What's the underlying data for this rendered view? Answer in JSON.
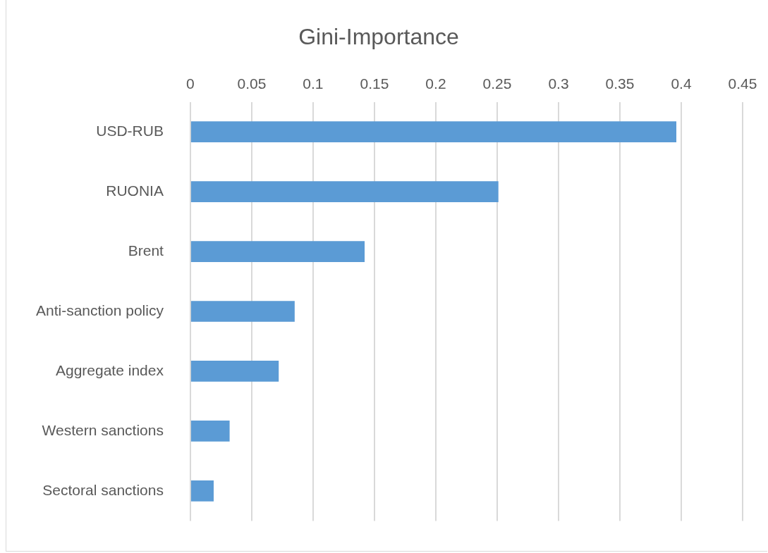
{
  "chart_data": {
    "type": "bar",
    "orientation": "horizontal",
    "title": "Gini-Importance",
    "categories": [
      "USD-RUB",
      "RUONIA",
      "Brent",
      "Anti-sanction policy",
      "Aggregate index",
      "Western sanctions",
      "Sectoral sanctions"
    ],
    "values": [
      0.396,
      0.251,
      0.142,
      0.085,
      0.072,
      0.032,
      0.019
    ],
    "color": "#5b9bd5",
    "xlim": [
      0,
      0.45
    ],
    "xticks": [
      0,
      0.05,
      0.1,
      0.15,
      0.2,
      0.25,
      0.3,
      0.35,
      0.4,
      0.45
    ],
    "grid": "x",
    "legend": false
  }
}
